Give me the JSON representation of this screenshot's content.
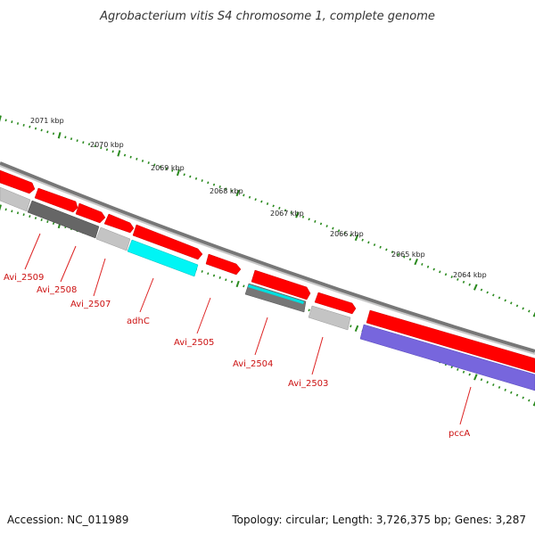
{
  "title": "Agrobacterium vitis S4 chromosome 1, complete genome",
  "accession": "Accession: NC_011989",
  "summary": "Topology: circular; Length: 3,726,375 bp; Genes: 3,287",
  "colors": {
    "forward_gene": "#ff0000",
    "backbone": "#888888",
    "tick": "#2a8a1e",
    "label": "#cc1111",
    "adhC": "#00f5f5",
    "pccA": "#7766dd",
    "gray_dark": "#666666",
    "gray_light": "#c4c4c4"
  },
  "kbp_labels": [
    "2071 kbp",
    "2070 kbp",
    "2069 kbp",
    "2068 kbp",
    "2067 kbp",
    "2066 kbp",
    "2065 kbp",
    "2064 kbp"
  ],
  "gene_labels": [
    "Avi_2509",
    "Avi_2508",
    "Avi_2507",
    "adhC",
    "Avi_2505",
    "Avi_2504",
    "Avi_2503",
    "pccA"
  ]
}
